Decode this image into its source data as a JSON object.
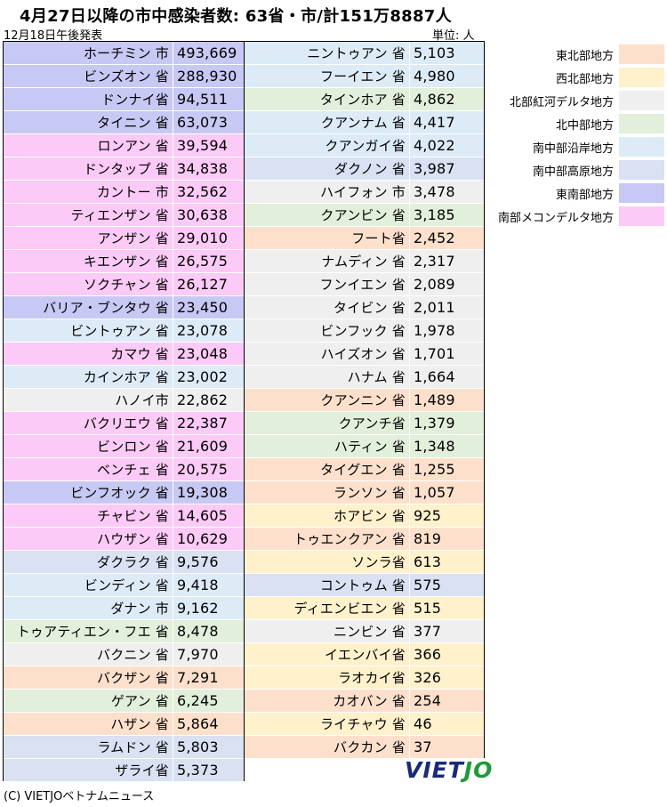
{
  "header": {
    "title": "4月27日以降の市中感染者数: 63省・市/計151万8887人",
    "date": "12月18日午後発表",
    "unit": "単位: 人"
  },
  "colors": {
    "north_east": "#fde0cc",
    "north_west": "#fef1cc",
    "red_river_delta": "#efefef",
    "north_central": "#e2efda",
    "south_central_coast": "#ddebf7",
    "central_highlands": "#d9e1f2",
    "south_east": "#c8c8f4",
    "mekong_delta": "#fccaf6"
  },
  "legend": [
    {
      "label": "東北部地方",
      "color": "#fde0cc"
    },
    {
      "label": "西北部地方",
      "color": "#fef1cc"
    },
    {
      "label": "北部紅河デルタ地方",
      "color": "#efefef"
    },
    {
      "label": "北中部地方",
      "color": "#e2efda"
    },
    {
      "label": "南中部沿岸地方",
      "color": "#ddebf7"
    },
    {
      "label": "南中部高原地方",
      "color": "#d9e1f2"
    },
    {
      "label": "東南部地方",
      "color": "#c8c8f4"
    },
    {
      "label": "南部メコンデルタ地方",
      "color": "#fccaf6"
    }
  ],
  "left_rows": [
    {
      "name": "ホーチミン 市",
      "value": "493,669",
      "color": "#c8c8f4"
    },
    {
      "name": "ビンズオン 省",
      "value": "288,930",
      "color": "#c8c8f4"
    },
    {
      "name": "ドンナイ省",
      "value": "94,511",
      "color": "#c8c8f4"
    },
    {
      "name": "タイニン 省",
      "value": "63,073",
      "color": "#c8c8f4"
    },
    {
      "name": "ロンアン 省",
      "value": "39,594",
      "color": "#fccaf6"
    },
    {
      "name": "ドンタップ 省",
      "value": "34,838",
      "color": "#fccaf6"
    },
    {
      "name": "カントー 市",
      "value": "32,562",
      "color": "#fccaf6"
    },
    {
      "name": "ティエンザン 省",
      "value": "30,638",
      "color": "#fccaf6"
    },
    {
      "name": "アンザン 省",
      "value": "29,010",
      "color": "#fccaf6"
    },
    {
      "name": "キエンザン 省",
      "value": "26,575",
      "color": "#fccaf6"
    },
    {
      "name": "ソクチャン 省",
      "value": "26,127",
      "color": "#fccaf6"
    },
    {
      "name": "バリア・ブンタウ 省",
      "value": "23,450",
      "color": "#c8c8f4"
    },
    {
      "name": "ビントゥアン 省",
      "value": "23,078",
      "color": "#ddebf7"
    },
    {
      "name": "カマウ 省",
      "value": "23,048",
      "color": "#fccaf6"
    },
    {
      "name": "カインホア 省",
      "value": "23,002",
      "color": "#ddebf7"
    },
    {
      "name": "ハノイ市",
      "value": "22,862",
      "color": "#efefef"
    },
    {
      "name": "バクリエウ 省",
      "value": "22,387",
      "color": "#fccaf6"
    },
    {
      "name": "ビンロン 省",
      "value": "21,609",
      "color": "#fccaf6"
    },
    {
      "name": "ベンチェ 省",
      "value": "20,575",
      "color": "#fccaf6"
    },
    {
      "name": "ビンフオック 省",
      "value": "19,308",
      "color": "#c8c8f4"
    },
    {
      "name": "チャビン 省",
      "value": "14,605",
      "color": "#fccaf6"
    },
    {
      "name": "ハウザン 省",
      "value": "10,629",
      "color": "#fccaf6"
    },
    {
      "name": "ダクラク 省",
      "value": "9,576",
      "color": "#d9e1f2"
    },
    {
      "name": "ビンディン 省",
      "value": "9,418",
      "color": "#ddebf7"
    },
    {
      "name": "ダナン 市",
      "value": "9,162",
      "color": "#ddebf7"
    },
    {
      "name": "トゥアティエン・フエ 省",
      "value": "8,478",
      "color": "#e2efda"
    },
    {
      "name": "バクニン 省",
      "value": "7,970",
      "color": "#efefef"
    },
    {
      "name": "バクザン 省",
      "value": "7,291",
      "color": "#fde0cc"
    },
    {
      "name": "ゲアン 省",
      "value": "6,245",
      "color": "#e2efda"
    },
    {
      "name": "ハザン 省",
      "value": "5,864",
      "color": "#fde0cc"
    },
    {
      "name": "ラムドン 省",
      "value": "5,803",
      "color": "#d9e1f2"
    },
    {
      "name": "ザライ省",
      "value": "5,373",
      "color": "#d9e1f2"
    }
  ],
  "right_rows": [
    {
      "name": "ニントゥアン 省",
      "value": "5,103",
      "color": "#ddebf7"
    },
    {
      "name": "フーイエン 省",
      "value": "4,980",
      "color": "#ddebf7"
    },
    {
      "name": "タインホア 省",
      "value": "4,862",
      "color": "#e2efda"
    },
    {
      "name": "クアンナム 省",
      "value": "4,417",
      "color": "#ddebf7"
    },
    {
      "name": "クアンガイ省",
      "value": "4,022",
      "color": "#ddebf7"
    },
    {
      "name": "ダクノン 省",
      "value": "3,987",
      "color": "#d9e1f2"
    },
    {
      "name": "ハイフォン 市",
      "value": "3,478",
      "color": "#efefef"
    },
    {
      "name": "クアンビン 省",
      "value": "3,185",
      "color": "#e2efda"
    },
    {
      "name": "フート省",
      "value": "2,452",
      "color": "#fde0cc"
    },
    {
      "name": "ナムディン 省",
      "value": "2,317",
      "color": "#efefef"
    },
    {
      "name": "フンイエン 省",
      "value": "2,089",
      "color": "#efefef"
    },
    {
      "name": "タイビン 省",
      "value": "2,011",
      "color": "#efefef"
    },
    {
      "name": "ビンフック 省",
      "value": "1,978",
      "color": "#efefef"
    },
    {
      "name": "ハイズオン 省",
      "value": "1,701",
      "color": "#efefef"
    },
    {
      "name": "ハナム 省",
      "value": "1,664",
      "color": "#efefef"
    },
    {
      "name": "クアンニン 省",
      "value": "1,489",
      "color": "#fde0cc"
    },
    {
      "name": "クアンチ省",
      "value": "1,379",
      "color": "#e2efda"
    },
    {
      "name": "ハティン 省",
      "value": "1,348",
      "color": "#e2efda"
    },
    {
      "name": "タイグエン 省",
      "value": "1,255",
      "color": "#fde0cc"
    },
    {
      "name": "ランソン 省",
      "value": "1,057",
      "color": "#fde0cc"
    },
    {
      "name": "ホアビン 省",
      "value": "925",
      "color": "#fef1cc"
    },
    {
      "name": "トゥエンクアン 省",
      "value": "819",
      "color": "#fde0cc"
    },
    {
      "name": "ソンラ省",
      "value": "613",
      "color": "#fef1cc"
    },
    {
      "name": "コントゥム 省",
      "value": "575",
      "color": "#d9e1f2"
    },
    {
      "name": "ディエンビエン 省",
      "value": "515",
      "color": "#fef1cc"
    },
    {
      "name": "ニンビン 省",
      "value": "377",
      "color": "#efefef"
    },
    {
      "name": "イエンバイ省",
      "value": "366",
      "color": "#fef1cc"
    },
    {
      "name": "ラオカイ省",
      "value": "326",
      "color": "#fef1cc"
    },
    {
      "name": "カオバン 省",
      "value": "254",
      "color": "#fde0cc"
    },
    {
      "name": "ライチャウ 省",
      "value": "46",
      "color": "#fef1cc"
    },
    {
      "name": "バクカン 省",
      "value": "37",
      "color": "#fde0cc"
    }
  ],
  "logo": {
    "part1": "VIET",
    "part2": "JO"
  },
  "footer": {
    "copyright": "(C) VIETJOベトナムニュース"
  }
}
